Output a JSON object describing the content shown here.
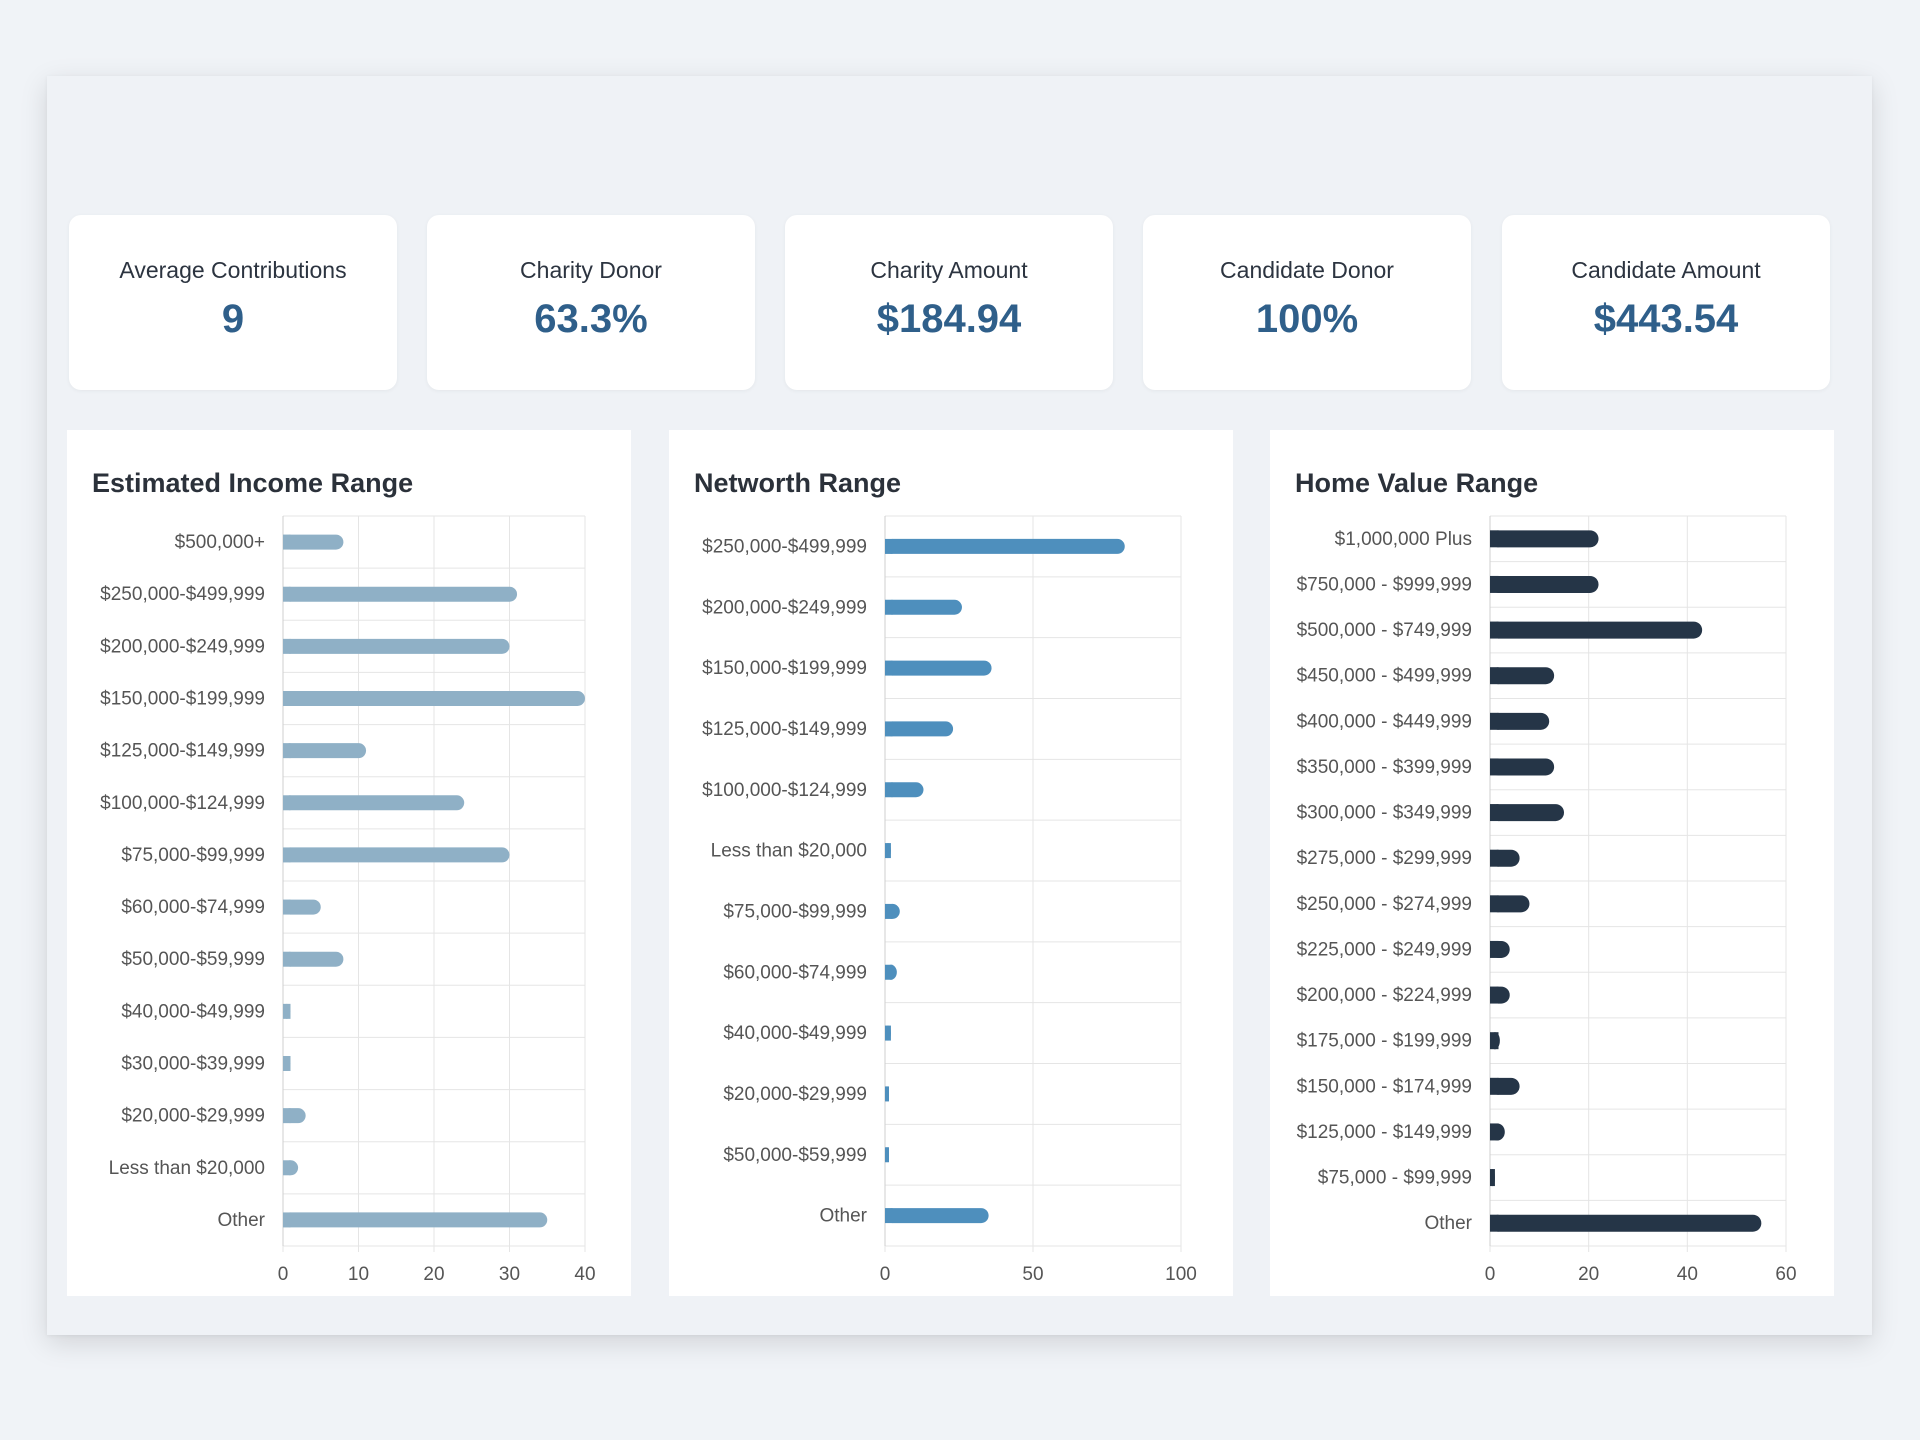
{
  "kpis": [
    {
      "label": "Average Contributions",
      "value": "9"
    },
    {
      "label": "Charity Donor",
      "value": "63.3%"
    },
    {
      "label": "Charity Amount",
      "value": "$184.94"
    },
    {
      "label": "Candidate Donor",
      "value": "100%"
    },
    {
      "label": "Candidate Amount",
      "value": "$443.54"
    }
  ],
  "colors": {
    "income_bar": "#8fb0c6",
    "networth_bar": "#4e8fbd",
    "home_bar": "#253547",
    "grid": "#e5e5e5",
    "label_text": "#555555"
  },
  "chart_data": [
    {
      "type": "bar",
      "orientation": "horizontal",
      "title": "Estimated Income Range",
      "categories": [
        "$500,000+",
        "$250,000-$499,999",
        "$200,000-$249,999",
        "$150,000-$199,999",
        "$125,000-$149,999",
        "$100,000-$124,999",
        "$75,000-$99,999",
        "$60,000-$74,999",
        "$50,000-$59,999",
        "$40,000-$49,999",
        "$30,000-$39,999",
        "$20,000-$29,999",
        "Less than $20,000",
        "Other"
      ],
      "values": [
        8,
        31,
        30,
        40,
        11,
        24,
        30,
        5,
        8,
        1,
        1,
        3,
        2,
        35
      ],
      "xlim": [
        0,
        40
      ],
      "xticks": [
        "0",
        "10",
        "20",
        "30",
        "40"
      ],
      "grid": true
    },
    {
      "type": "bar",
      "orientation": "horizontal",
      "title": "Networth Range",
      "categories": [
        "$250,000-$499,999",
        "$200,000-$249,999",
        "$150,000-$199,999",
        "$125,000-$149,999",
        "$100,000-$124,999",
        "Less than $20,000",
        "$75,000-$99,999",
        "$60,000-$74,999",
        "$40,000-$49,999",
        "$20,000-$29,999",
        "$50,000-$59,999",
        "Other"
      ],
      "values": [
        81,
        26,
        36,
        23,
        13,
        2,
        5,
        4,
        2,
        1,
        1,
        35
      ],
      "xlim": [
        0,
        100
      ],
      "xticks": [
        "0",
        "50",
        "100"
      ],
      "grid": true
    },
    {
      "type": "bar",
      "orientation": "horizontal",
      "title": "Home Value Range",
      "categories": [
        "$1,000,000 Plus",
        "$750,000 - $999,999",
        "$500,000 - $749,999",
        "$450,000 - $499,999",
        "$400,000 - $449,999",
        "$350,000 - $399,999",
        "$300,000 - $349,999",
        "$275,000 - $299,999",
        "$250,000 - $274,999",
        "$225,000 - $249,999",
        "$200,000 - $224,999",
        "$175,000 - $199,999",
        "$150,000 - $174,999",
        "$125,000 - $149,999",
        "$75,000 - $99,999",
        "Other"
      ],
      "values": [
        22,
        22,
        43,
        13,
        12,
        13,
        15,
        6,
        8,
        4,
        4,
        2,
        6,
        3,
        1,
        55
      ],
      "xlim": [
        0,
        60
      ],
      "xticks": [
        "0",
        "20",
        "40",
        "60"
      ],
      "grid": true
    }
  ]
}
